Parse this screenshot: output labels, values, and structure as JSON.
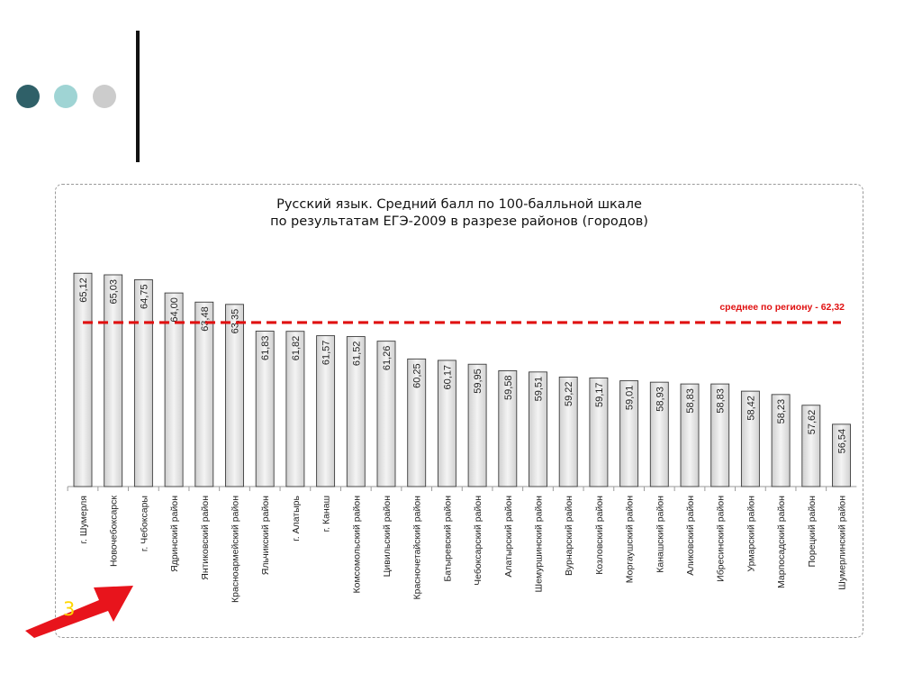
{
  "slide": {
    "decor_dots": [
      "dark-teal-dot",
      "light-teal-dot",
      "gray-dot"
    ],
    "arrow_label": "3",
    "colors": {
      "dot_dark": "#2f6068",
      "dot_light": "#9fd4d4",
      "dot_gray": "#cccccc",
      "arrow": "#e8141c",
      "arrow_text": "#ffd700"
    }
  },
  "chart_data": {
    "type": "bar",
    "title_lines": [
      "Русский язык. Средний балл по 100-балльной шкале",
      "по результатам ЕГЭ-2009 в разрезе районов (городов)"
    ],
    "categories": [
      "г. Шумерля",
      "Новочебоксарск",
      "г. Чебоксары",
      "Ядринский район",
      "Янтиковский район",
      "Красноармейский район",
      "Яльчикский район",
      "г. Алатырь",
      "г. Канаш",
      "Комсомольский район",
      "Цивильский район",
      "Красночетайский район",
      "Батыревский район",
      "Чебоксарский район",
      "Алатырский район",
      "Шемуршинский район",
      "Вурнарский район",
      "Козловский район",
      "Моргаушский район",
      "Канашский район",
      "Аликовский район",
      "Ибресинский район",
      "Урмарский район",
      "Марпосадский район",
      "Порецкий район",
      "Шумерлинский район"
    ],
    "values": [
      65.12,
      65.03,
      64.75,
      64.0,
      63.48,
      63.35,
      61.83,
      61.82,
      61.57,
      61.52,
      61.26,
      60.25,
      60.17,
      59.95,
      59.58,
      59.51,
      59.22,
      59.17,
      59.01,
      58.93,
      58.83,
      58.83,
      58.42,
      58.23,
      57.62,
      56.54
    ],
    "value_labels": [
      "65,12",
      "65,03",
      "64,75",
      "64,00",
      "63,48",
      "63,35",
      "61,83",
      "61,82",
      "61,57",
      "61,52",
      "61,26",
      "60,25",
      "60,17",
      "59,95",
      "59,58",
      "59,51",
      "59,22",
      "59,17",
      "59,01",
      "58,93",
      "58,83",
      "58,83",
      "58,42",
      "58,23",
      "57,62",
      "56,54"
    ],
    "reference_line": {
      "value": 62.32,
      "label": "среднее по региону - 62,32",
      "color": "#e01010",
      "style": "dashed"
    },
    "ylim": [
      53.0,
      65.9
    ],
    "bar_color": "#e6e6e6",
    "grid": false,
    "legend": "none"
  }
}
